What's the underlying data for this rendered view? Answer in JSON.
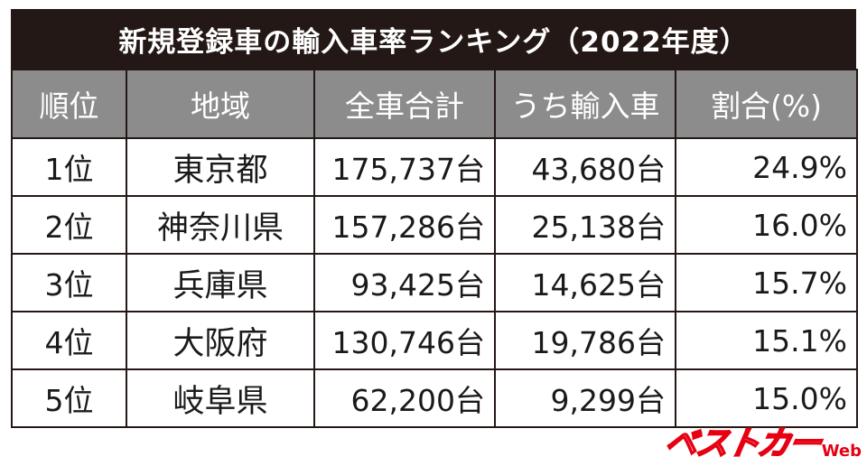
{
  "title": "新規登録車の輸入車率ランキング（2022年度）",
  "headers": [
    "順位",
    "地域",
    "全車合計",
    "うち輸入車",
    "割合(%)"
  ],
  "rows": [
    {
      "rank": "1位",
      "region": "東京都",
      "total": "175,737台",
      "imported": "43,680台",
      "ratio": "24.9%"
    },
    {
      "rank": "2位",
      "region": "神奈川県",
      "total": "157,286台",
      "imported": "25,138台",
      "ratio": "16.0%"
    },
    {
      "rank": "3位",
      "region": "兵庫県",
      "total": "93,425台",
      "imported": "14,625台",
      "ratio": "15.7%"
    },
    {
      "rank": "4位",
      "region": "大阪府",
      "total": "130,746台",
      "imported": "19,786台",
      "ratio": "15.1%"
    },
    {
      "rank": "5位",
      "region": "岐阜県",
      "total": "62,200台",
      "imported": "9,299台",
      "ratio": "15.0%"
    }
  ],
  "logo": {
    "main": "ベストカー",
    "suffix": "Web",
    "color": "#e60012"
  }
}
